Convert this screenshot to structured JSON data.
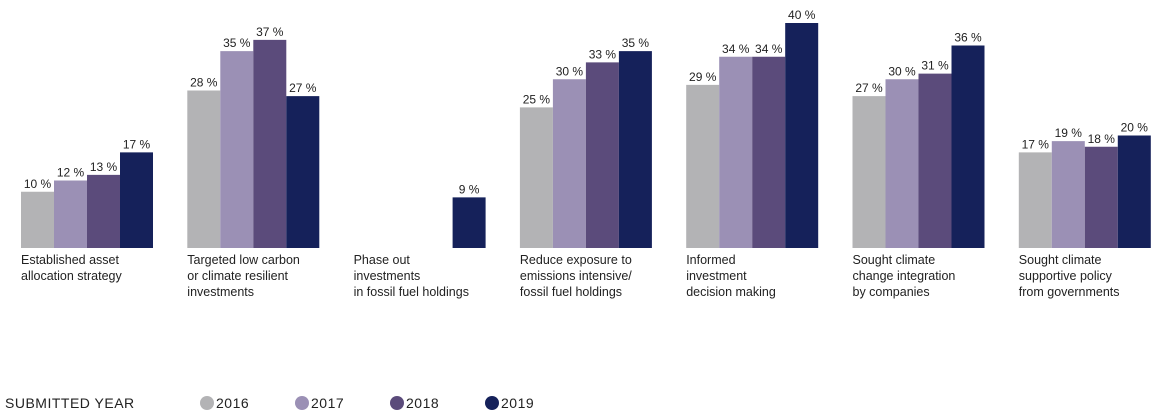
{
  "chart_data": {
    "type": "bar",
    "categories": [
      "Established asset\nallocation strategy",
      "Targeted low carbon\nor climate resilient\ninvestments",
      "Phase out\ninvestments\nin fossil fuel holdings",
      "Reduce exposure to\nemissions intensive/\nfossil fuel holdings",
      "Informed\ninvestment\ndecision making",
      "Sought climate\nchange integration\nby companies",
      "Sought climate\nsupportive policy\nfrom governments"
    ],
    "series": [
      {
        "name": "2016",
        "color": "#b3b3b5",
        "values": [
          10,
          28,
          null,
          25,
          29,
          27,
          17
        ],
        "value_labels": [
          "10 %",
          "28 %",
          null,
          "25 %",
          "29 %",
          "27 %",
          "17 %"
        ]
      },
      {
        "name": "2017",
        "color": "#9b90b5",
        "values": [
          12,
          35,
          null,
          30,
          34,
          30,
          19
        ],
        "value_labels": [
          "12 %",
          "35 %",
          null,
          "30 %",
          "34 %",
          "30 %",
          "19 %"
        ]
      },
      {
        "name": "2018",
        "color": "#5b4b7b",
        "values": [
          13,
          37,
          null,
          33,
          34,
          31,
          18
        ],
        "value_labels": [
          "13 %",
          "37 %",
          null,
          "33 %",
          "34 %",
          "31 %",
          "18 %"
        ]
      },
      {
        "name": "2019",
        "color": "#15215a",
        "values": [
          17,
          27,
          9,
          35,
          40,
          36,
          20
        ],
        "value_labels": [
          "17 %",
          "27 %",
          "9 %",
          "35 %",
          "40 %",
          "36 %",
          "20 %"
        ]
      }
    ],
    "legend_title": "SUBMITTED YEAR",
    "ylim": [
      0,
      40
    ]
  }
}
